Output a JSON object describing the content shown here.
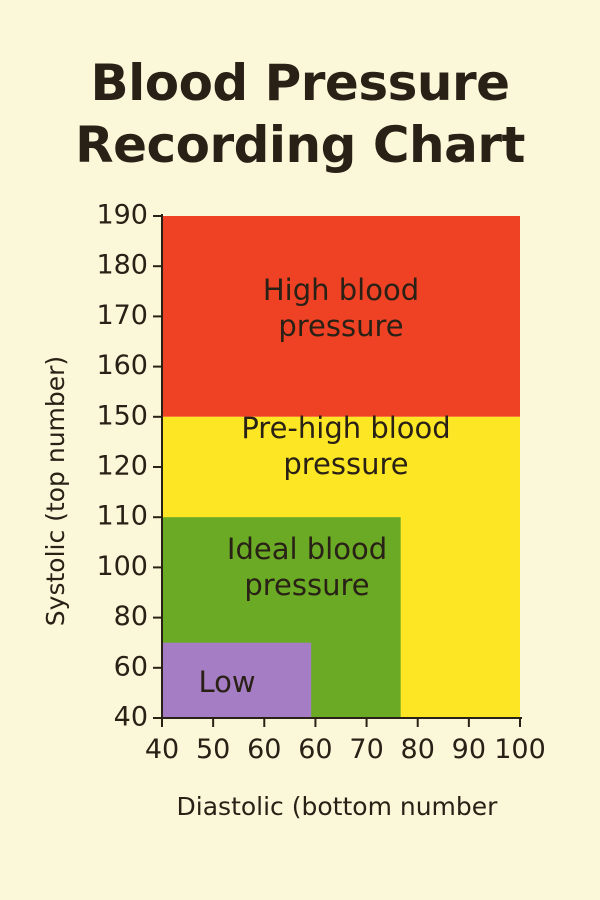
{
  "title_line1": "Blood Pressure",
  "title_line2": "Recording Chart",
  "chart_data": {
    "type": "area",
    "title": "Blood Pressure Recording Chart",
    "xlabel": "Diastolic (bottom number",
    "ylabel": "Systolic (top number)",
    "x_ticks": [
      "40",
      "50",
      "60",
      "60",
      "70",
      "80",
      "90",
      "100"
    ],
    "y_ticks": [
      "190",
      "180",
      "170",
      "160",
      "150",
      "120",
      "110",
      "100",
      "80",
      "60",
      "40"
    ],
    "zones": [
      {
        "name": "High blood pressure",
        "label_lines": [
          "High blood",
          "pressure"
        ],
        "color": "#ef4124",
        "x_range": [
          40,
          100
        ],
        "y_range_tick_index": [
          4,
          0
        ]
      },
      {
        "name": "Pre-high blood pressure",
        "label_lines": [
          "Pre-high blood",
          "pressure"
        ],
        "color": "#fde725",
        "x_range": [
          40,
          100
        ],
        "y_range_tick_index": [
          10,
          4
        ]
      },
      {
        "name": "Ideal blood pressure",
        "label_lines": [
          "Ideal blood",
          "pressure"
        ],
        "color": "#6aaa25",
        "x_range": [
          40,
          80
        ],
        "y_range_tick_index": [
          10,
          6
        ]
      },
      {
        "name": "Low",
        "label_lines": [
          "Low"
        ],
        "color": "#a57dc4",
        "x_range": [
          40,
          65
        ],
        "y_range_tick_index": [
          10,
          8.5
        ]
      }
    ]
  }
}
